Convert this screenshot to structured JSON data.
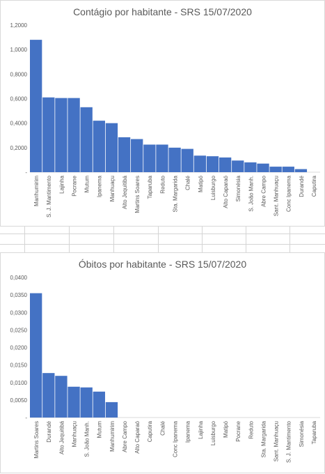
{
  "chart_data": [
    {
      "type": "bar",
      "title": "Contágio por habitante - SRS 15/07/2020",
      "xlabel": "",
      "ylabel": "",
      "ylim": [
        0,
        1.2
      ],
      "yticks": [
        "-",
        "0,2000",
        "0,4000",
        "0,6000",
        "0,8000",
        "1,0000",
        "1,2000"
      ],
      "bar_color": "#4472c4",
      "categories": [
        "Manhumirim",
        "S. J. Mantimento",
        "Lajinha",
        "Pocrane",
        "Mutum",
        "Ipanema",
        "Manhuaçu",
        "Alto Jequitibá",
        "Martins Soares",
        "Taparuba",
        "Reduto",
        "Sta. Margarida",
        "Chalé",
        "Matipó",
        "Luisburgo",
        "Alto Caparaó",
        "Simonésia",
        "S. João Manh.",
        "Abre Campo",
        "Sant. Manhuaçu",
        "Conc Ipanema",
        "Durandé",
        "Caputira"
      ],
      "values": [
        1.08,
        0.61,
        0.605,
        0.605,
        0.53,
        0.42,
        0.4,
        0.285,
        0.27,
        0.225,
        0.225,
        0.2,
        0.19,
        0.135,
        0.13,
        0.12,
        0.095,
        0.08,
        0.07,
        0.045,
        0.045,
        0.025,
        0.0
      ]
    },
    {
      "type": "bar",
      "title": "Óbitos por habitante - SRS 15/07/2020",
      "xlabel": "",
      "ylabel": "",
      "ylim": [
        0,
        0.04
      ],
      "yticks": [
        "-",
        "0,0050",
        "0,0100",
        "0,0150",
        "0,0200",
        "0,0250",
        "0,0300",
        "0,0350",
        "0,0400"
      ],
      "bar_color": "#4472c4",
      "categories": [
        "Martins Soares",
        "Durandé",
        "Alto Jequitibá",
        "Manhuaçu",
        "S. João Manh.",
        "Mutum",
        "Manhumirim",
        "Abre Campo",
        "Alto Caparaó",
        "Caputira",
        "Chalé",
        "Conc Ipanema",
        "Ipanema",
        "Lajinha",
        "Luisburgo",
        "Matipó",
        "Pocrane",
        "Reduto",
        "Sta. Margarida",
        "Sant. Manhuaçu",
        "S. J. Mantimento",
        "Simonésia",
        "Taparuba"
      ],
      "values": [
        0.0355,
        0.0127,
        0.0119,
        0.0088,
        0.0086,
        0.0074,
        0.0044,
        0,
        0,
        0,
        0,
        0,
        0,
        0,
        0,
        0,
        0,
        0,
        0,
        0,
        0,
        0,
        0
      ]
    }
  ]
}
